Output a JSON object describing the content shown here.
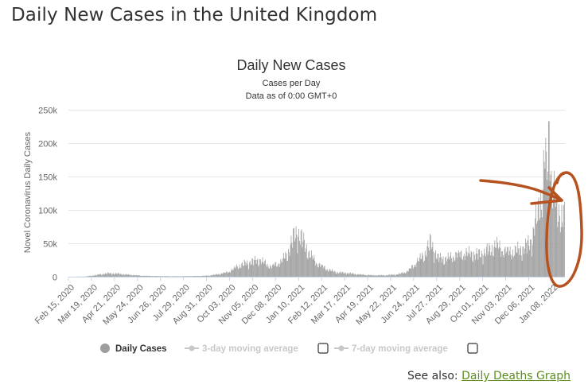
{
  "page": {
    "heading": "Daily New Cases in the United Kingdom",
    "see_also_label": "See also:",
    "see_also_link": "Daily Deaths Graph"
  },
  "colors": {
    "bars": "#9e9e9e",
    "link": "#5b8e1c",
    "annotation": "#b5521f",
    "legend_inactive": "#c8c8c8",
    "grid": "#e6e6e6"
  },
  "annotation": {
    "type": "hand-drawn arrow and circle",
    "color": "#b5521f",
    "target": "latest cases, around Jan 2022"
  },
  "chart_data": {
    "type": "bar",
    "title": "Daily New Cases",
    "subtitle_lines": [
      "Cases per Day",
      "Data as of 0:00 GMT+0"
    ],
    "ylabel": "Novel Coronavirus Daily Cases",
    "ylim": [
      0,
      250000
    ],
    "yticks": [
      0,
      50000,
      100000,
      150000,
      200000,
      250000
    ],
    "ytick_labels": [
      "0",
      "50k",
      "100k",
      "150k",
      "200k",
      "250k"
    ],
    "x_start": "Feb 15, 2020",
    "x_end": "Jan 26, 2022",
    "xtick_labels": [
      "Feb 15, 2020",
      "Mar 19, 2020",
      "Apr 21, 2020",
      "May 24, 2020",
      "Jun 26, 2020",
      "Jul 29, 2020",
      "Aug 31, 2020",
      "Oct 03, 2020",
      "Nov 05, 2020",
      "Dec 08, 2020",
      "Jan 10, 2021",
      "Feb 12, 2021",
      "Mar 17, 2021",
      "Apr 19, 2021",
      "May 22, 2021",
      "Jun 24, 2021",
      "Jul 27, 2021",
      "Aug 29, 2021",
      "Oct 01, 2021",
      "Nov 03, 2021",
      "Dec 06, 2021",
      "Jan 08, 2022"
    ],
    "series": [
      {
        "name": "Daily Cases",
        "active": true,
        "values_approx": [
          [
            "Feb 15, 2020",
            0
          ],
          [
            "Mar 10, 2020",
            300
          ],
          [
            "Mar 25, 2020",
            2500
          ],
          [
            "Apr 10, 2020",
            5000
          ],
          [
            "Apr 25, 2020",
            4500
          ],
          [
            "May 10, 2020",
            3000
          ],
          [
            "May 30, 2020",
            1500
          ],
          [
            "Jun 20, 2020",
            900
          ],
          [
            "Jul 20, 2020",
            650
          ],
          [
            "Aug 15, 2020",
            1000
          ],
          [
            "Sep 01, 2020",
            1500
          ],
          [
            "Sep 15, 2020",
            3500
          ],
          [
            "Oct 01, 2020",
            7000
          ],
          [
            "Oct 15, 2020",
            16000
          ],
          [
            "Nov 01, 2020",
            22000
          ],
          [
            "Nov 15, 2020",
            25000
          ],
          [
            "Dec 01, 2020",
            15000
          ],
          [
            "Dec 15, 2020",
            22000
          ],
          [
            "Dec 25, 2020",
            35000
          ],
          [
            "Jan 01, 2021",
            55000
          ],
          [
            "Jan 08, 2021",
            68000
          ],
          [
            "Jan 15, 2021",
            55000
          ],
          [
            "Jan 25, 2021",
            35000
          ],
          [
            "Feb 05, 2021",
            20000
          ],
          [
            "Feb 20, 2021",
            11000
          ],
          [
            "Mar 05, 2021",
            6500
          ],
          [
            "Mar 20, 2021",
            5500
          ],
          [
            "Apr 05, 2021",
            3500
          ],
          [
            "Apr 25, 2021",
            2200
          ],
          [
            "May 15, 2021",
            2200
          ],
          [
            "Jun 01, 2021",
            3500
          ],
          [
            "Jun 15, 2021",
            8000
          ],
          [
            "Jul 01, 2021",
            25000
          ],
          [
            "Jul 10, 2021",
            35000
          ],
          [
            "Jul 18, 2021",
            52000
          ],
          [
            "Jul 28, 2021",
            28000
          ],
          [
            "Aug 10, 2021",
            27000
          ],
          [
            "Aug 25, 2021",
            33000
          ],
          [
            "Sep 10, 2021",
            35000
          ],
          [
            "Sep 25, 2021",
            33000
          ],
          [
            "Oct 10, 2021",
            40000
          ],
          [
            "Oct 20, 2021",
            48000
          ],
          [
            "Nov 01, 2021",
            38000
          ],
          [
            "Nov 15, 2021",
            38000
          ],
          [
            "Dec 01, 2021",
            44000
          ],
          [
            "Dec 10, 2021",
            55000
          ],
          [
            "Dec 15, 2021",
            80000
          ],
          [
            "Dec 20, 2021",
            100000
          ],
          [
            "Dec 25, 2021",
            130000
          ],
          [
            "Dec 29, 2021",
            185000
          ],
          [
            "Jan 01, 2022",
            150000
          ],
          [
            "Jan 04, 2022",
            218000
          ],
          [
            "Jan 08, 2022",
            150000
          ],
          [
            "Jan 12, 2022",
            120000
          ],
          [
            "Jan 16, 2022",
            85000
          ],
          [
            "Jan 20, 2022",
            100000
          ],
          [
            "Jan 26, 2022",
            90000
          ]
        ]
      },
      {
        "name": "3-day moving average",
        "active": false
      },
      {
        "name": "7-day moving average",
        "active": false
      }
    ],
    "grid": true,
    "legend_position": "bottom"
  }
}
